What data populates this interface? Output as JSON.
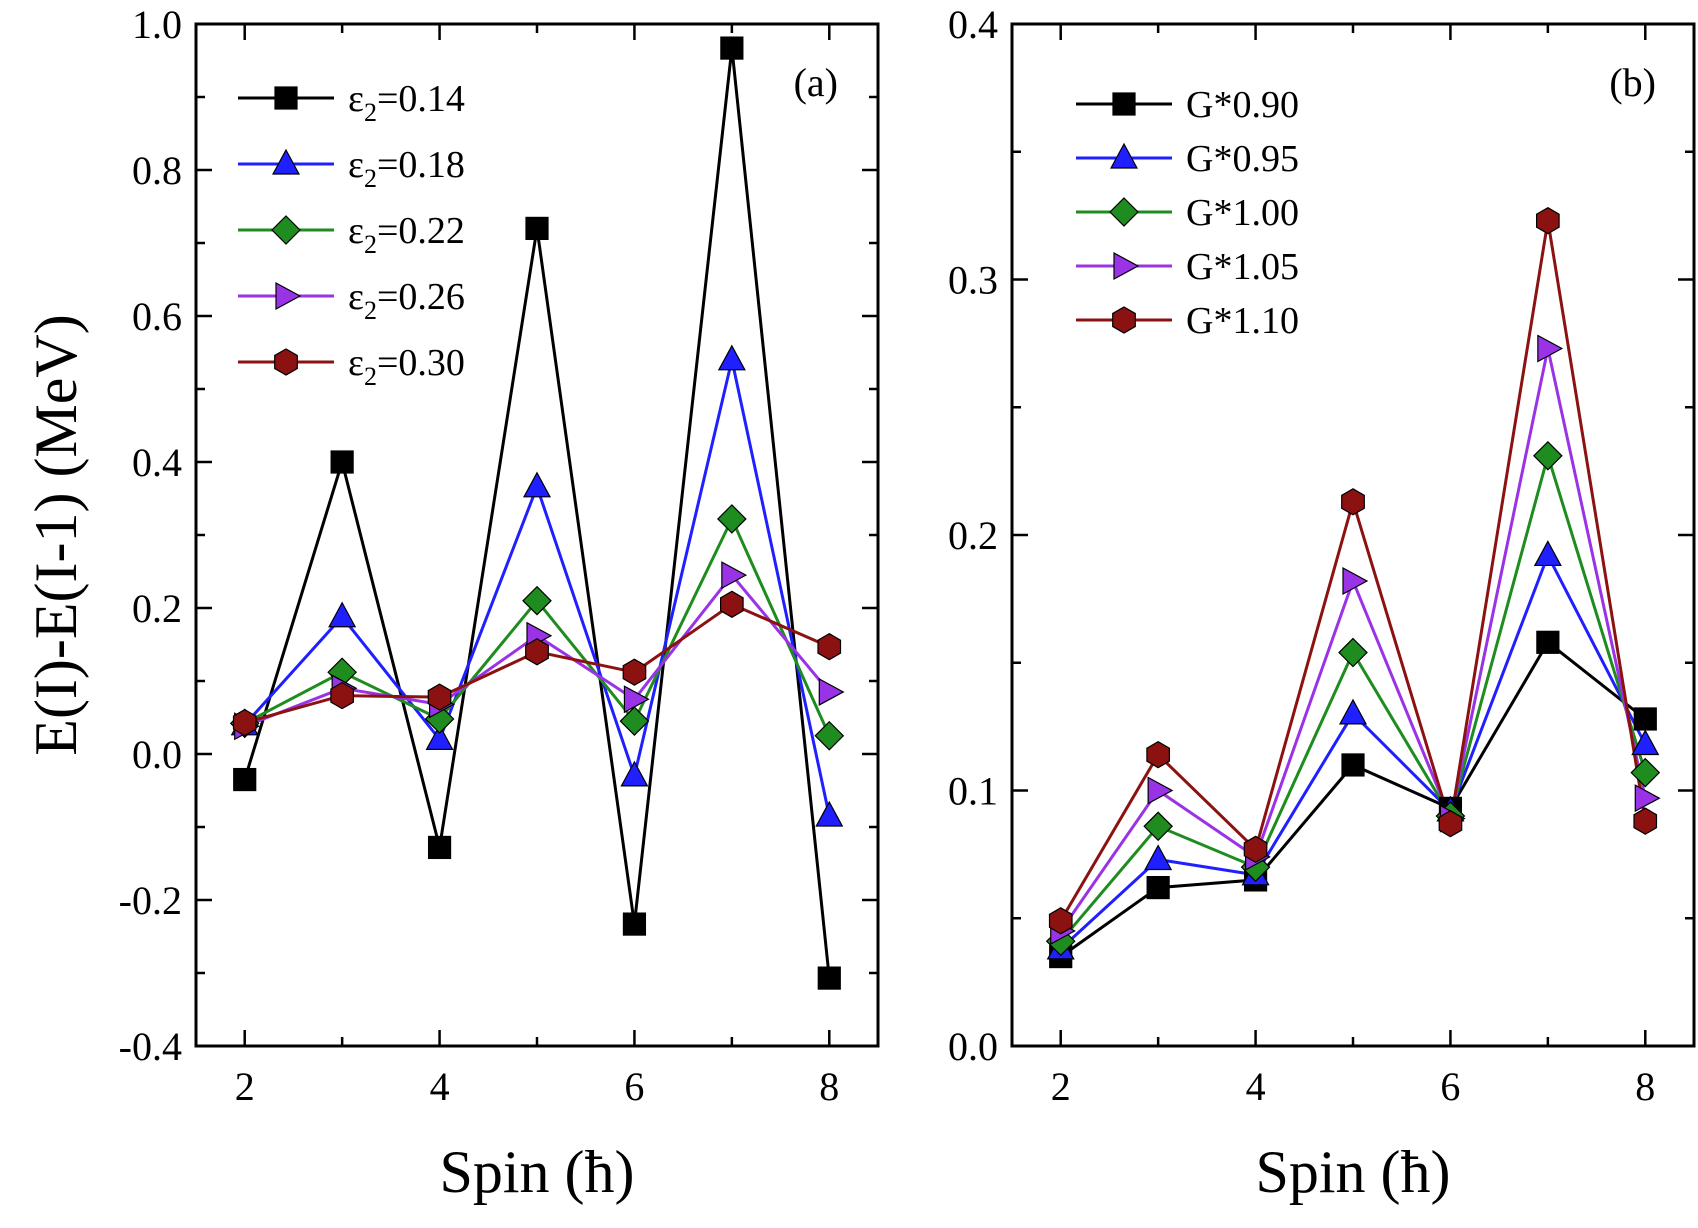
{
  "chart_data": [
    {
      "type": "line",
      "panel_label": "(a)",
      "xlabel": "Spin (ħ)",
      "ylabel": "E(I)-E(I-1) (MeV)",
      "xlim": [
        1.5,
        8.5
      ],
      "ylim": [
        -0.4,
        1.0
      ],
      "xticks": [
        2,
        4,
        6,
        8
      ],
      "xtick_labels": [
        "2",
        "4",
        "6",
        "8"
      ],
      "yticks": [
        -0.4,
        -0.2,
        0.0,
        0.2,
        0.4,
        0.6,
        0.8,
        1.0
      ],
      "ytick_labels": [
        "-0.4",
        "-0.2",
        "0.0",
        "0.2",
        "0.4",
        "0.6",
        "0.8",
        "1.0"
      ],
      "grid": false,
      "legend_position": "top-left",
      "x": [
        2,
        3,
        4,
        5,
        6,
        7,
        8
      ],
      "series": [
        {
          "name": "ε2=0.14",
          "name_main": "ε",
          "name_sub": "2",
          "name_tail": "=0.14",
          "color": "#000000",
          "marker": "square",
          "values": [
            -0.035,
            0.4,
            -0.128,
            0.72,
            -0.233,
            0.967,
            -0.307
          ]
        },
        {
          "name": "ε2=0.18",
          "name_main": "ε",
          "name_sub": "2",
          "name_tail": "=0.18",
          "color": "#1f1fff",
          "marker": "triangle-up",
          "values": [
            0.04,
            0.188,
            0.02,
            0.366,
            -0.03,
            0.54,
            -0.085
          ]
        },
        {
          "name": "ε2=0.22",
          "name_main": "ε",
          "name_sub": "2",
          "name_tail": "=0.22",
          "color": "#1f8c1f",
          "marker": "diamond",
          "values": [
            0.042,
            0.112,
            0.048,
            0.21,
            0.045,
            0.322,
            0.025
          ]
        },
        {
          "name": "ε2=0.26",
          "name_main": "ε",
          "name_sub": "2",
          "name_tail": "=0.26",
          "color": "#9a33e6",
          "marker": "triangle-right",
          "values": [
            0.038,
            0.09,
            0.068,
            0.162,
            0.075,
            0.245,
            0.085
          ]
        },
        {
          "name": "ε2=0.30",
          "name_main": "ε",
          "name_sub": "2",
          "name_tail": "=0.30",
          "color": "#8c1212",
          "marker": "hexagon",
          "values": [
            0.043,
            0.08,
            0.078,
            0.14,
            0.112,
            0.205,
            0.147
          ]
        }
      ]
    },
    {
      "type": "line",
      "panel_label": "(b)",
      "xlabel": "Spin (ħ)",
      "ylabel": "",
      "xlim": [
        1.5,
        8.5
      ],
      "ylim": [
        0.0,
        0.4
      ],
      "xticks": [
        2,
        4,
        6,
        8
      ],
      "xtick_labels": [
        "2",
        "4",
        "6",
        "8"
      ],
      "yticks": [
        0.0,
        0.1,
        0.2,
        0.3,
        0.4
      ],
      "ytick_labels": [
        "0.0",
        "0.1",
        "0.2",
        "0.3",
        "0.4"
      ],
      "grid": false,
      "legend_position": "top-left",
      "x": [
        2,
        3,
        4,
        5,
        6,
        7,
        8
      ],
      "series": [
        {
          "name": "G*0.90",
          "color": "#000000",
          "marker": "square",
          "values": [
            0.035,
            0.062,
            0.065,
            0.11,
            0.093,
            0.158,
            0.128
          ]
        },
        {
          "name": "G*0.95",
          "color": "#1f1fff",
          "marker": "triangle-up",
          "values": [
            0.038,
            0.073,
            0.067,
            0.13,
            0.092,
            0.192,
            0.118
          ]
        },
        {
          "name": "G*1.00",
          "color": "#1f8c1f",
          "marker": "diamond",
          "values": [
            0.041,
            0.086,
            0.07,
            0.154,
            0.09,
            0.231,
            0.107
          ]
        },
        {
          "name": "G*1.05",
          "color": "#9a33e6",
          "marker": "triangle-right",
          "values": [
            0.045,
            0.1,
            0.074,
            0.182,
            0.089,
            0.273,
            0.097
          ]
        },
        {
          "name": "G*1.10",
          "color": "#8c1212",
          "marker": "hexagon",
          "values": [
            0.049,
            0.114,
            0.077,
            0.213,
            0.087,
            0.323,
            0.088
          ]
        }
      ]
    }
  ]
}
